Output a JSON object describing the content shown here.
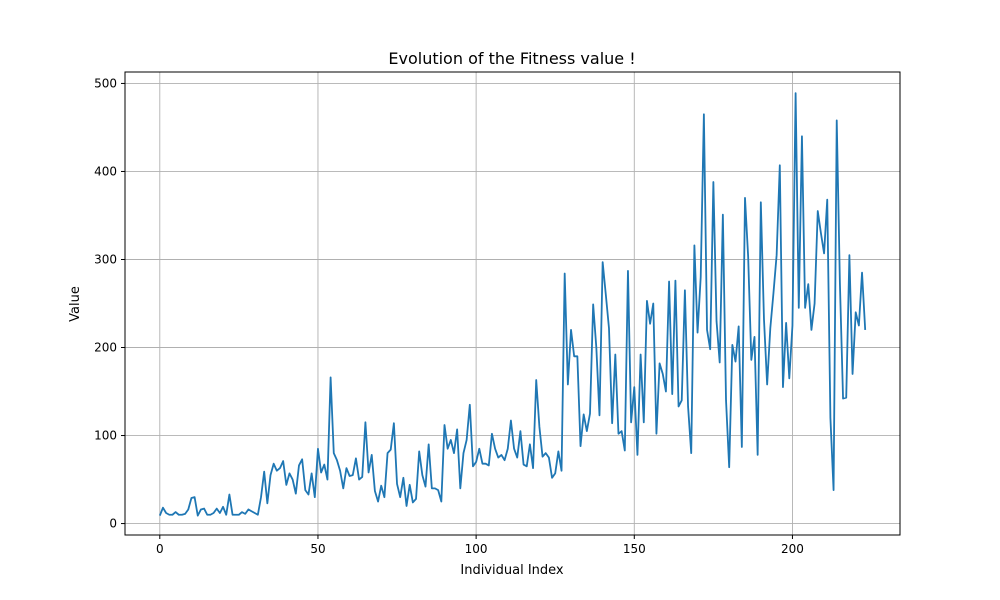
{
  "chart_data": {
    "type": "line",
    "title": "Evolution of the Fitness value !",
    "xlabel": "Individual Index",
    "ylabel": "Value",
    "xlim": [
      -11,
      234
    ],
    "ylim": [
      -13,
      513
    ],
    "xticks": [
      0,
      50,
      100,
      150,
      200
    ],
    "yticks": [
      0,
      100,
      200,
      300,
      400,
      500
    ],
    "grid": true,
    "line_color": "#1f77b4",
    "series": [
      {
        "x_start": 0,
        "values": [
          9,
          18,
          12,
          10,
          10,
          13,
          10,
          10,
          11,
          16,
          29,
          30,
          9,
          16,
          17,
          10,
          10,
          12,
          17,
          12,
          19,
          10,
          33,
          10,
          10,
          10,
          13,
          11,
          16,
          14,
          12,
          10,
          30,
          59,
          23,
          55,
          68,
          60,
          63,
          71,
          44,
          57,
          50,
          34,
          66,
          73,
          38,
          33,
          57,
          30,
          85,
          58,
          67,
          50,
          166,
          80,
          72,
          60,
          40,
          63,
          54,
          55,
          74,
          50,
          53,
          115,
          58,
          78,
          37,
          25,
          43,
          30,
          80,
          84,
          114,
          45,
          30,
          52,
          20,
          44,
          24,
          28,
          82,
          55,
          42,
          90,
          40,
          40,
          38,
          25,
          112,
          85,
          95,
          80,
          107,
          40,
          80,
          95,
          135,
          65,
          70,
          85,
          68,
          68,
          66,
          102,
          85,
          75,
          78,
          72,
          85,
          117,
          85,
          75,
          105,
          67,
          65,
          90,
          63,
          163,
          110,
          76,
          80,
          75,
          52,
          57,
          82,
          60,
          284,
          158,
          220,
          190,
          190,
          88,
          124,
          105,
          125,
          249,
          200,
          123,
          297,
          260,
          222,
          114,
          192,
          102,
          105,
          83,
          287,
          115,
          155,
          78,
          192,
          115,
          253,
          227,
          250,
          102,
          182,
          170,
          150,
          275,
          147,
          276,
          133,
          140,
          265,
          133,
          80,
          316,
          217,
          280,
          465,
          220,
          198,
          388,
          230,
          183,
          351,
          140,
          64,
          203,
          184,
          224,
          87,
          370,
          303,
          186,
          212,
          78,
          365,
          232,
          158,
          222,
          262,
          305,
          407,
          155,
          228,
          165,
          225,
          489,
          245,
          440,
          245,
          272,
          220,
          250,
          355,
          330,
          307,
          368,
          120,
          38,
          458,
          273,
          142,
          143,
          305,
          170,
          240,
          225,
          285,
          220
        ]
      }
    ]
  }
}
